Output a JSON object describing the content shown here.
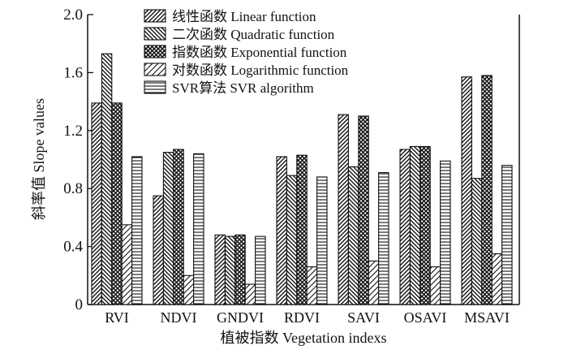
{
  "chart_data": {
    "type": "bar",
    "xlabel": "植被指数 Vegetation indexs",
    "ylabel": "斜率值 Slope values",
    "ylim": [
      0,
      2.0
    ],
    "yticks": [
      "0",
      "0.4",
      "0.8",
      "1.2",
      "1.6",
      "2.0"
    ],
    "grid": false,
    "legend_position": "top-right",
    "categories": [
      "RVI",
      "NDVI",
      "GNDVI",
      "RDVI",
      "SAVI",
      "OSAVI",
      "MSAVI"
    ],
    "series": [
      {
        "name": "线性函数 Linear function",
        "pattern": "hatch-forward",
        "values": [
          1.39,
          0.75,
          0.48,
          1.02,
          1.31,
          1.07,
          1.57
        ]
      },
      {
        "name": "二次函数 Quadratic function",
        "pattern": "hatch-backward",
        "values": [
          1.73,
          1.05,
          0.47,
          0.89,
          0.95,
          1.09,
          0.87
        ]
      },
      {
        "name": "指数函数 Exponential function",
        "pattern": "crosshatch",
        "values": [
          1.39,
          1.07,
          0.48,
          1.03,
          1.3,
          1.09,
          1.58
        ]
      },
      {
        "name": "对数函数 Logarithmic function",
        "pattern": "hatch-forward-light",
        "values": [
          0.55,
          0.2,
          0.14,
          0.26,
          0.3,
          0.26,
          0.35
        ]
      },
      {
        "name": "SVR算法 SVR algorithm",
        "pattern": "horizontal",
        "values": [
          1.02,
          1.04,
          0.47,
          0.88,
          0.91,
          0.99,
          0.96
        ]
      }
    ]
  }
}
